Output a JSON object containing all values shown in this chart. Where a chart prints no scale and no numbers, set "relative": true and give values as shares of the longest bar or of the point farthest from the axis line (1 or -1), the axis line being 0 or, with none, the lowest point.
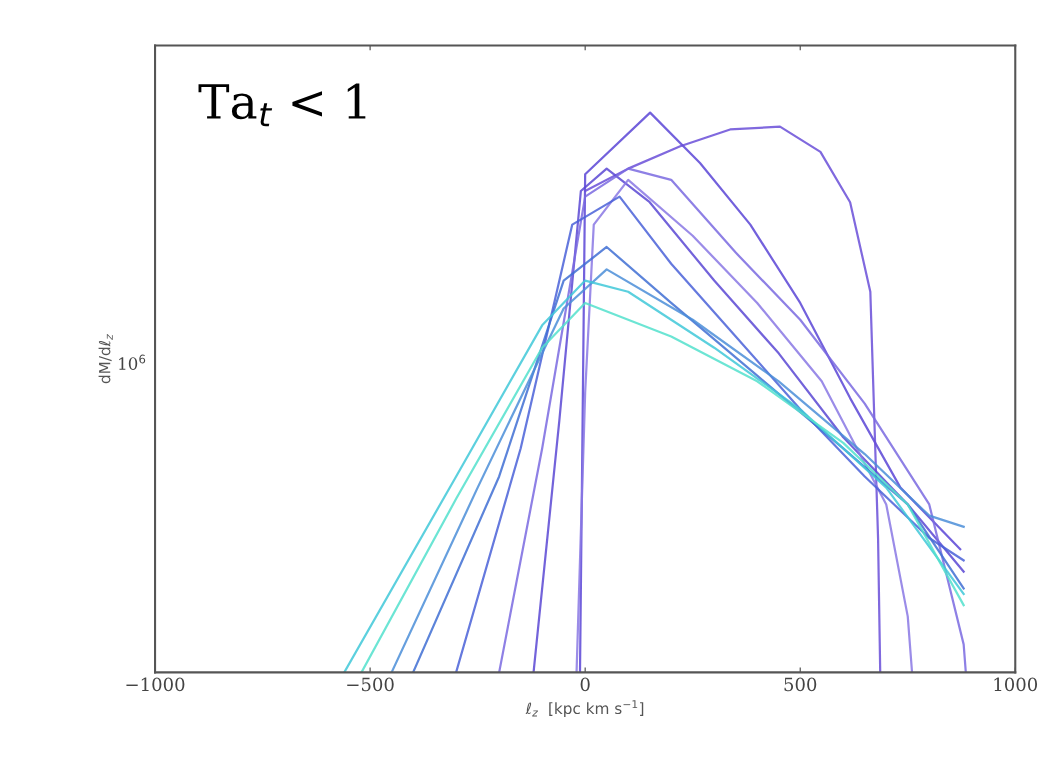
{
  "chart_data": {
    "type": "line",
    "relative": true,
    "xlabel": "ℓ$_{z}$  [kpc km s$^{−1}$]",
    "ylabel": "dM/dℓ$_{z}$",
    "annotations": [
      "Ta$_{t}$ < 1",
      "10$^{6}$"
    ],
    "xlim": [
      -1000,
      1000
    ],
    "xticks": [
      {
        "value": -1000,
        "label": "−1000"
      },
      {
        "value": -500,
        "label": "−500"
      },
      0,
      500,
      1000
    ],
    "grid": false,
    "legend": false,
    "marker": "none",
    "line_style": "solid",
    "series": [
      {
        "color": "#5b45d6",
        "x": [
          -12,
          0,
          151,
          267,
          384,
          500,
          616,
          733,
          872
        ],
        "values": [
          0,
          0.89,
          1.0,
          0.91,
          0.8,
          0.66,
          0.49,
          0.33,
          0.22
        ]
      },
      {
        "color": "#6a4fd8",
        "x": [
          0,
          100,
          221,
          337,
          453,
          547,
          616,
          663,
          681,
          686
        ],
        "values": [
          0.86,
          0.9,
          0.94,
          0.97,
          0.975,
          0.93,
          0.84,
          0.68,
          0.24,
          0
        ]
      },
      {
        "color": "#5a48d4",
        "x": [
          -120,
          -60,
          -10,
          50,
          150,
          300,
          450,
          600,
          750,
          880
        ],
        "values": [
          0,
          0.45,
          0.86,
          0.9,
          0.84,
          0.7,
          0.57,
          0.42,
          0.3,
          0.18
        ]
      },
      {
        "color": "#7a6ae0",
        "x": [
          -200,
          -100,
          0,
          100,
          200,
          350,
          500,
          650,
          800,
          880,
          885
        ],
        "values": [
          0,
          0.4,
          0.85,
          0.9,
          0.88,
          0.75,
          0.63,
          0.48,
          0.3,
          0.05,
          0
        ]
      },
      {
        "color": "#8a78e4",
        "x": [
          -20,
          0,
          20,
          100,
          250,
          400,
          550,
          700,
          750,
          760
        ],
        "values": [
          0,
          0.5,
          0.8,
          0.88,
          0.78,
          0.66,
          0.52,
          0.3,
          0.1,
          0
        ]
      },
      {
        "color": "#4a62d8",
        "x": [
          -300,
          -150,
          -30,
          80,
          200,
          350,
          500,
          650,
          800,
          880
        ],
        "values": [
          0,
          0.4,
          0.8,
          0.85,
          0.73,
          0.6,
          0.47,
          0.35,
          0.24,
          0.2
        ]
      },
      {
        "color": "#3f6fd4",
        "x": [
          -400,
          -200,
          -50,
          50,
          200,
          400,
          600,
          750,
          880
        ],
        "values": [
          0,
          0.35,
          0.7,
          0.76,
          0.66,
          0.53,
          0.4,
          0.3,
          0.15
        ]
      },
      {
        "color": "#4b8ed8",
        "x": [
          -450,
          -250,
          -50,
          50,
          250,
          450,
          650,
          800,
          880
        ],
        "values": [
          0,
          0.33,
          0.65,
          0.72,
          0.63,
          0.52,
          0.39,
          0.28,
          0.26
        ]
      },
      {
        "color": "#3fc8d8",
        "x": [
          -560,
          -300,
          -100,
          0,
          100,
          300,
          500,
          700,
          880
        ],
        "values": [
          0,
          0.35,
          0.62,
          0.7,
          0.68,
          0.58,
          0.47,
          0.33,
          0.14
        ]
      },
      {
        "color": "#52e0cc",
        "x": [
          -520,
          -300,
          -100,
          0,
          200,
          400,
          600,
          750,
          880
        ],
        "values": [
          0,
          0.31,
          0.58,
          0.66,
          0.6,
          0.52,
          0.41,
          0.3,
          0.12
        ]
      }
    ]
  }
}
